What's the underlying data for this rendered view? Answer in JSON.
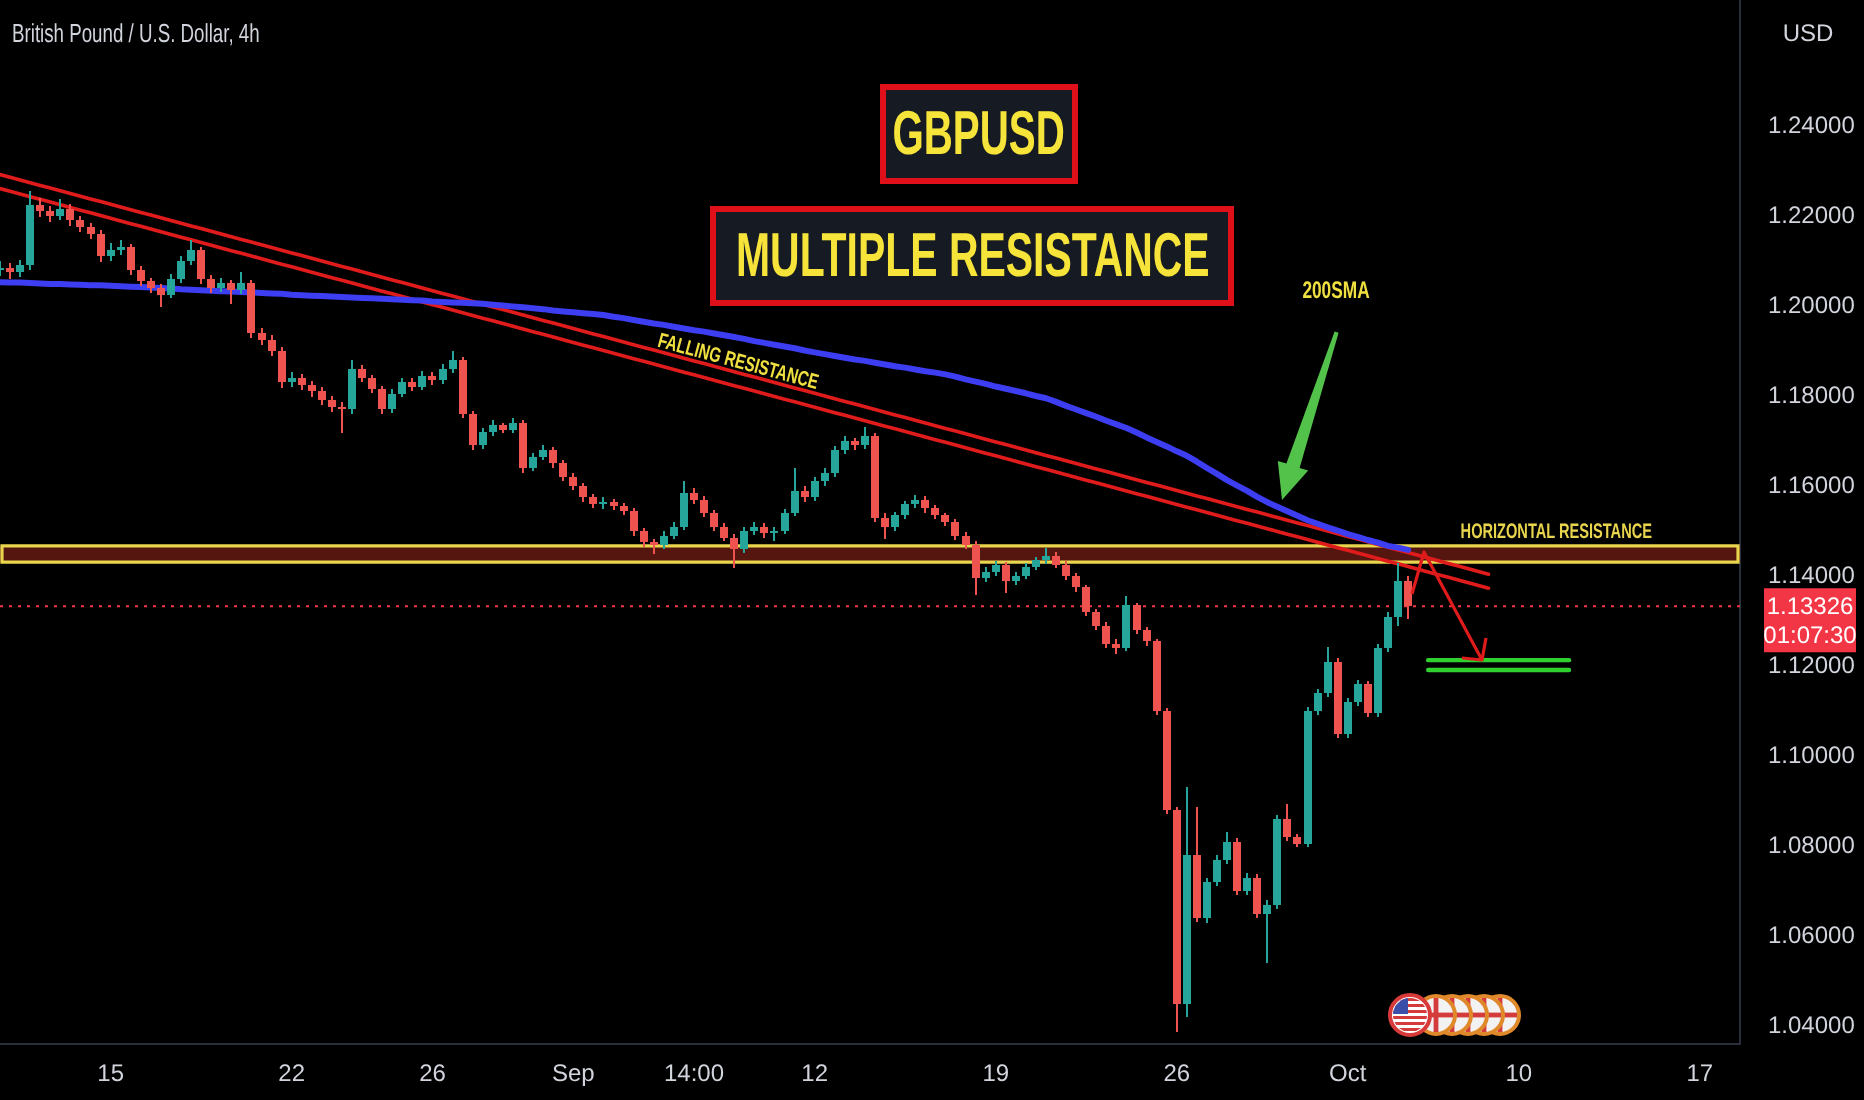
{
  "chart_data": {
    "type": "candlestick",
    "title": "GBPUSD",
    "subtitle": "MULTIPLE RESISTANCE",
    "ylabel": "USD",
    "annotations": [
      "British Pound / U.S. Dollar, 4h",
      "01:07:30",
      "200SMA"
    ],
    "categories": [
      null,
      null,
      null,
      null,
      null,
      null,
      null,
      null,
      null,
      null,
      null,
      "15",
      null,
      null,
      null,
      null,
      null,
      null,
      null,
      null,
      null,
      null,
      null,
      null,
      null,
      null,
      null,
      null,
      null,
      "22",
      null,
      null,
      null,
      null,
      null,
      null,
      null,
      null,
      null,
      null,
      null,
      null,
      null,
      "26",
      null,
      null,
      null,
      null,
      null,
      null,
      null,
      null,
      null,
      null,
      null,
      null,
      null,
      "Sep",
      null,
      null,
      null,
      null,
      null,
      null,
      null,
      null,
      null,
      null,
      null,
      "14:00",
      null,
      null,
      null,
      null,
      null,
      null,
      null,
      null,
      null,
      null,
      null,
      "12",
      null,
      null,
      null,
      null,
      null,
      null,
      null,
      null,
      null,
      null,
      null,
      null,
      null,
      null,
      null,
      null,
      null,
      "19",
      null,
      null,
      null,
      null,
      null,
      null,
      null,
      null,
      null,
      null,
      null,
      null,
      null,
      null,
      null,
      null,
      null,
      "26",
      null,
      null,
      null,
      null,
      null,
      null,
      null,
      null,
      null,
      null,
      null,
      null,
      null,
      null,
      null,
      null,
      "Oct",
      null,
      null,
      null,
      null,
      null,
      null,
      null,
      null,
      null,
      null,
      null,
      null,
      null,
      null,
      null,
      null,
      "10",
      null,
      null,
      null,
      null,
      null,
      null,
      null,
      null,
      null,
      null,
      null,
      null,
      null,
      null,
      null,
      null,
      null,
      "17",
      null,
      null,
      null,
      null
    ],
    "ohlc": [
      [
        1.208,
        1.2098,
        1.2068,
        1.2085
      ],
      [
        1.2085,
        1.2095,
        1.2062,
        1.2075
      ],
      [
        1.2075,
        1.2102,
        1.2066,
        1.209
      ],
      [
        1.209,
        1.2255,
        1.2082,
        1.2225
      ],
      [
        1.2225,
        1.224,
        1.2198,
        1.221
      ],
      [
        1.221,
        1.2222,
        1.2188,
        1.22
      ],
      [
        1.22,
        1.2236,
        1.2192,
        1.2215
      ],
      [
        1.2215,
        1.2226,
        1.218,
        1.219
      ],
      [
        1.219,
        1.2198,
        1.2165,
        1.2175
      ],
      [
        1.2175,
        1.2184,
        1.215,
        1.216
      ],
      [
        1.216,
        1.2168,
        1.21,
        1.211
      ],
      [
        1.211,
        1.2138,
        1.2102,
        1.2125
      ],
      [
        1.2125,
        1.2145,
        1.2115,
        1.213
      ],
      [
        1.213,
        1.2136,
        1.207,
        1.208
      ],
      [
        1.208,
        1.2088,
        1.2045,
        1.2055
      ],
      [
        1.2055,
        1.2062,
        1.203,
        1.204
      ],
      [
        1.204,
        1.2048,
        1.2,
        1.2025
      ],
      [
        1.2025,
        1.207,
        1.2018,
        1.206
      ],
      [
        1.206,
        1.211,
        1.2052,
        1.21
      ],
      [
        1.21,
        1.2145,
        1.2092,
        1.2125
      ],
      [
        1.2125,
        1.213,
        1.205,
        1.206
      ],
      [
        1.206,
        1.2068,
        1.203,
        1.204
      ],
      [
        1.204,
        1.2062,
        1.2032,
        1.205
      ],
      [
        1.205,
        1.2056,
        1.2005,
        1.2035
      ],
      [
        1.2035,
        1.2075,
        1.2028,
        1.205
      ],
      [
        1.205,
        1.2056,
        1.193,
        1.194
      ],
      [
        1.194,
        1.195,
        1.1915,
        1.1925
      ],
      [
        1.1925,
        1.1935,
        1.189,
        1.19
      ],
      [
        1.19,
        1.1908,
        1.182,
        1.183
      ],
      [
        1.183,
        1.1852,
        1.1822,
        1.184
      ],
      [
        1.184,
        1.1848,
        1.1815,
        1.1825
      ],
      [
        1.1825,
        1.1832,
        1.18,
        1.181
      ],
      [
        1.181,
        1.1818,
        1.1782,
        1.179
      ],
      [
        1.179,
        1.1798,
        1.1765,
        1.1775
      ],
      [
        1.1775,
        1.1785,
        1.172,
        1.177
      ],
      [
        1.177,
        1.188,
        1.1762,
        1.186
      ],
      [
        1.186,
        1.1868,
        1.1832,
        1.184
      ],
      [
        1.184,
        1.1846,
        1.1808,
        1.1815
      ],
      [
        1.1815,
        1.1822,
        1.1762,
        1.177
      ],
      [
        1.177,
        1.1815,
        1.1764,
        1.1805
      ],
      [
        1.1805,
        1.184,
        1.1798,
        1.183
      ],
      [
        1.183,
        1.1838,
        1.1812,
        1.182
      ],
      [
        1.182,
        1.1855,
        1.1814,
        1.1845
      ],
      [
        1.1845,
        1.1852,
        1.1826,
        1.1835
      ],
      [
        1.1835,
        1.187,
        1.1828,
        1.186
      ],
      [
        1.186,
        1.1898,
        1.1852,
        1.188
      ],
      [
        1.188,
        1.1886,
        1.1752,
        1.176
      ],
      [
        1.176,
        1.1766,
        1.1682,
        1.169
      ],
      [
        1.169,
        1.1728,
        1.1684,
        1.172
      ],
      [
        1.172,
        1.1745,
        1.1712,
        1.1735
      ],
      [
        1.1735,
        1.174,
        1.1718,
        1.1725
      ],
      [
        1.1725,
        1.175,
        1.172,
        1.174
      ],
      [
        1.174,
        1.1745,
        1.163,
        1.164
      ],
      [
        1.164,
        1.1672,
        1.1634,
        1.1665
      ],
      [
        1.1665,
        1.169,
        1.1658,
        1.168
      ],
      [
        1.168,
        1.1686,
        1.1642,
        1.165
      ],
      [
        1.165,
        1.1656,
        1.1612,
        1.162
      ],
      [
        1.162,
        1.1628,
        1.1592,
        1.16
      ],
      [
        1.16,
        1.1606,
        1.1566,
        1.1575
      ],
      [
        1.1575,
        1.1582,
        1.1552,
        1.156
      ],
      [
        1.156,
        1.1574,
        1.155,
        1.1565
      ],
      [
        1.1565,
        1.157,
        1.1548,
        1.1555
      ],
      [
        1.1555,
        1.1562,
        1.1536,
        1.1545
      ],
      [
        1.1545,
        1.155,
        1.149,
        1.15
      ],
      [
        1.15,
        1.1506,
        1.1466,
        1.1475
      ],
      [
        1.1475,
        1.1482,
        1.145,
        1.147
      ],
      [
        1.147,
        1.1498,
        1.1462,
        1.149
      ],
      [
        1.149,
        1.1518,
        1.1484,
        1.151
      ],
      [
        1.151,
        1.161,
        1.1504,
        1.1585
      ],
      [
        1.1585,
        1.1594,
        1.1562,
        1.157
      ],
      [
        1.157,
        1.1576,
        1.1532,
        1.154
      ],
      [
        1.154,
        1.1546,
        1.1502,
        1.151
      ],
      [
        1.151,
        1.1516,
        1.1478,
        1.1485
      ],
      [
        1.1485,
        1.1492,
        1.1418,
        1.146
      ],
      [
        1.146,
        1.1508,
        1.1452,
        1.15
      ],
      [
        1.15,
        1.1518,
        1.1492,
        1.151
      ],
      [
        1.151,
        1.1516,
        1.1486,
        1.1495
      ],
      [
        1.1495,
        1.1508,
        1.148,
        1.15
      ],
      [
        1.15,
        1.1548,
        1.1494,
        1.154
      ],
      [
        1.154,
        1.164,
        1.1534,
        1.159
      ],
      [
        1.159,
        1.1598,
        1.1566,
        1.1575
      ],
      [
        1.1575,
        1.1618,
        1.1568,
        1.161
      ],
      [
        1.161,
        1.1638,
        1.1602,
        1.163
      ],
      [
        1.163,
        1.1688,
        1.1622,
        1.168
      ],
      [
        1.168,
        1.171,
        1.1672,
        1.17
      ],
      [
        1.17,
        1.1706,
        1.1682,
        1.169
      ],
      [
        1.169,
        1.173,
        1.1684,
        1.171
      ],
      [
        1.171,
        1.1716,
        1.1522,
        1.153
      ],
      [
        1.153,
        1.1538,
        1.1484,
        1.151
      ],
      [
        1.151,
        1.1542,
        1.1502,
        1.1535
      ],
      [
        1.1535,
        1.1566,
        1.1528,
        1.156
      ],
      [
        1.156,
        1.158,
        1.1552,
        1.157
      ],
      [
        1.157,
        1.1576,
        1.1542,
        1.155
      ],
      [
        1.155,
        1.1556,
        1.1528,
        1.1535
      ],
      [
        1.1535,
        1.154,
        1.1512,
        1.152
      ],
      [
        1.152,
        1.1526,
        1.1482,
        1.149
      ],
      [
        1.149,
        1.1496,
        1.1462,
        1.147
      ],
      [
        1.147,
        1.1476,
        1.136,
        1.1395
      ],
      [
        1.1395,
        1.1418,
        1.1388,
        1.141
      ],
      [
        1.141,
        1.1432,
        1.1402,
        1.1425
      ],
      [
        1.1425,
        1.143,
        1.1364,
        1.139
      ],
      [
        1.139,
        1.1408,
        1.1382,
        1.14
      ],
      [
        1.14,
        1.1428,
        1.1394,
        1.142
      ],
      [
        1.142,
        1.1442,
        1.1414,
        1.1435
      ],
      [
        1.1435,
        1.1462,
        1.1428,
        1.1445
      ],
      [
        1.1445,
        1.1452,
        1.1418,
        1.1425
      ],
      [
        1.1425,
        1.1432,
        1.1392,
        1.14
      ],
      [
        1.14,
        1.1406,
        1.1366,
        1.1375
      ],
      [
        1.1375,
        1.138,
        1.1312,
        1.132
      ],
      [
        1.132,
        1.1326,
        1.1282,
        1.129
      ],
      [
        1.129,
        1.1296,
        1.1242,
        1.125
      ],
      [
        1.125,
        1.1258,
        1.1227,
        1.124
      ],
      [
        1.124,
        1.1355,
        1.1234,
        1.1335
      ],
      [
        1.1335,
        1.134,
        1.1272,
        1.128
      ],
      [
        1.128,
        1.1286,
        1.1246,
        1.1255
      ],
      [
        1.1255,
        1.126,
        1.1092,
        1.11
      ],
      [
        1.11,
        1.1106,
        1.0872,
        1.088
      ],
      [
        1.088,
        1.0886,
        1.0387,
        1.045
      ],
      [
        1.045,
        1.093,
        1.042,
        1.078
      ],
      [
        1.078,
        1.0885,
        1.0632,
        1.064
      ],
      [
        1.064,
        1.0728,
        1.063,
        1.072
      ],
      [
        1.072,
        1.0778,
        1.0712,
        1.077
      ],
      [
        1.077,
        1.083,
        1.0762,
        1.081
      ],
      [
        1.081,
        1.0816,
        1.0692,
        1.07
      ],
      [
        1.07,
        1.0738,
        1.0692,
        1.073
      ],
      [
        1.073,
        1.0736,
        1.0642,
        1.065
      ],
      [
        1.065,
        1.0678,
        1.054,
        1.067
      ],
      [
        1.067,
        1.0868,
        1.0662,
        1.086
      ],
      [
        1.086,
        1.0893,
        1.0812,
        1.082
      ],
      [
        1.082,
        1.0826,
        1.0798,
        1.0805
      ],
      [
        1.0805,
        1.1108,
        1.0798,
        1.11
      ],
      [
        1.11,
        1.1148,
        1.1092,
        1.114
      ],
      [
        1.114,
        1.124,
        1.1132,
        1.121
      ],
      [
        1.121,
        1.1216,
        1.1042,
        1.105
      ],
      [
        1.105,
        1.1128,
        1.1042,
        1.112
      ],
      [
        1.112,
        1.1168,
        1.1112,
        1.116
      ],
      [
        1.116,
        1.1166,
        1.1088,
        1.1095
      ],
      [
        1.1095,
        1.1248,
        1.1088,
        1.124
      ],
      [
        1.124,
        1.1318,
        1.1232,
        1.131
      ],
      [
        1.131,
        1.1427,
        1.129,
        1.139
      ],
      [
        1.139,
        1.14,
        1.1305,
        1.13326
      ],
      null,
      null,
      null,
      null,
      null,
      null,
      null,
      null,
      null,
      null,
      null,
      null,
      null,
      null,
      null,
      null,
      null,
      null,
      null,
      null,
      null,
      null,
      null,
      null,
      null,
      null,
      null,
      null,
      null,
      null,
      null,
      null,
      null
    ],
    "colors": [
      "#26a69a",
      "#ef5350",
      "#26a69a",
      "#26a69a",
      "#ef5350",
      "#ef5350",
      "#26a69a",
      "#ef5350",
      "#ef5350",
      "#ef5350",
      "#ef5350",
      "#26a69a",
      "#26a69a",
      "#ef5350",
      "#ef5350",
      "#ef5350",
      "#ef5350",
      "#26a69a",
      "#26a69a",
      "#26a69a",
      "#ef5350",
      "#ef5350",
      "#26a69a",
      "#ef5350",
      "#26a69a",
      "#ef5350",
      "#ef5350",
      "#ef5350",
      "#ef5350",
      "#26a69a",
      "#ef5350",
      "#ef5350",
      "#ef5350",
      "#ef5350",
      "#ef5350",
      "#26a69a",
      "#ef5350",
      "#ef5350",
      "#ef5350",
      "#26a69a",
      "#26a69a",
      "#ef5350",
      "#26a69a",
      "#ef5350",
      "#26a69a",
      "#26a69a",
      "#ef5350",
      "#ef5350",
      "#26a69a",
      "#26a69a",
      "#ef5350",
      "#26a69a",
      "#ef5350",
      "#26a69a",
      "#26a69a",
      "#ef5350",
      "#ef5350",
      "#ef5350",
      "#ef5350",
      "#ef5350",
      "#26a69a",
      "#ef5350",
      "#ef5350",
      "#ef5350",
      "#ef5350",
      "#ef5350",
      "#26a69a",
      "#26a69a",
      "#26a69a",
      "#ef5350",
      "#ef5350",
      "#ef5350",
      "#ef5350",
      "#ef5350",
      "#26a69a",
      "#26a69a",
      "#ef5350",
      "#26a69a",
      "#26a69a",
      "#26a69a",
      "#ef5350",
      "#26a69a",
      "#26a69a",
      "#26a69a",
      "#26a69a",
      "#ef5350",
      "#26a69a",
      "#ef5350",
      "#ef5350",
      "#26a69a",
      "#26a69a",
      "#26a69a",
      "#ef5350",
      "#ef5350",
      "#ef5350",
      "#ef5350",
      "#ef5350",
      "#ef5350",
      "#26a69a",
      "#26a69a",
      "#ef5350",
      "#26a69a",
      "#26a69a",
      "#26a69a",
      "#26a69a",
      "#ef5350",
      "#ef5350",
      "#ef5350",
      "#ef5350",
      "#ef5350",
      "#ef5350",
      "#ef5350",
      "#26a69a",
      "#ef5350",
      "#ef5350",
      "#ef5350",
      "#ef5350",
      "#ef5350",
      "#26a69a",
      "#ef5350",
      "#26a69a",
      "#26a69a",
      "#26a69a",
      "#ef5350",
      "#26a69a",
      "#ef5350",
      "#26a69a",
      "#26a69a",
      "#ef5350",
      "#ef5350",
      "#26a69a",
      "#26a69a",
      "#26a69a",
      "#ef5350",
      "#26a69a",
      "#26a69a",
      "#ef5350",
      "#26a69a",
      "#26a69a",
      "#26a69a",
      "#ef5350",
      null,
      null,
      null,
      null,
      null,
      null,
      null,
      null,
      null,
      null,
      null,
      null,
      null,
      null,
      null,
      null,
      null,
      null,
      null,
      null,
      null,
      null,
      null,
      null,
      null,
      null,
      null,
      null,
      null,
      null,
      null,
      null,
      null
    ],
    "series": [
      {
        "type": "line",
        "color": "#3d3df2",
        "values": [
          1.2053,
          1.2052,
          1.2052,
          1.2051,
          1.205,
          1.2049,
          1.2049,
          1.2048,
          1.2047,
          1.2046,
          1.2046,
          1.2045,
          1.2044,
          1.2043,
          1.2042,
          1.2041,
          1.204,
          1.2039,
          1.2037,
          1.2036,
          1.2035,
          1.2034,
          1.2033,
          1.2032,
          1.2031,
          1.203,
          1.2029,
          1.2028,
          1.2027,
          1.2025,
          1.2024,
          1.2023,
          1.2022,
          1.2021,
          1.202,
          1.2019,
          1.2018,
          1.2017,
          1.2016,
          1.2015,
          1.2014,
          1.2013,
          1.2012,
          1.201,
          1.2009,
          1.2008,
          1.2007,
          1.2006,
          1.2005,
          1.2003,
          1.2001,
          1.1999,
          1.1997,
          1.1995,
          1.1993,
          1.199,
          1.1988,
          1.1986,
          1.1984,
          1.1982,
          1.198,
          1.1976,
          1.1973,
          1.1969,
          1.1965,
          1.1961,
          1.1958,
          1.1954,
          1.195,
          1.1946,
          1.1943,
          1.1939,
          1.1935,
          1.1931,
          1.1927,
          1.1922,
          1.1918,
          1.1914,
          1.191,
          1.1906,
          1.1901,
          1.1897,
          1.1893,
          1.1889,
          1.1885,
          1.1881,
          1.1878,
          1.1874,
          1.187,
          1.1866,
          1.1863,
          1.1859,
          1.1855,
          1.1852,
          1.1848,
          1.1843,
          1.1837,
          1.1832,
          1.1827,
          1.1821,
          1.1816,
          1.1811,
          1.1806,
          1.18,
          1.1795,
          1.1787,
          1.1778,
          1.177,
          1.1762,
          1.1754,
          1.1745,
          1.1737,
          1.1729,
          1.1719,
          1.1708,
          1.1698,
          1.1688,
          1.1677,
          1.1667,
          1.1654,
          1.164,
          1.1627,
          1.1613,
          1.1601,
          1.1589,
          1.1576,
          1.1564,
          1.1554,
          1.1544,
          1.1534,
          1.1524,
          1.1516,
          1.1508,
          1.1501,
          1.1493,
          1.1487,
          1.148,
          1.1474,
          1.1467,
          1.1463,
          1.1458,
          null,
          null,
          null,
          null,
          null,
          null,
          null,
          null,
          null,
          null,
          null,
          null,
          null,
          null,
          null,
          null,
          null,
          null,
          null,
          null,
          null,
          null,
          null,
          null,
          null,
          null,
          null,
          null,
          null,
          null,
          null,
          null,
          null
        ]
      },
      {
        "type": "line",
        "name": "FALLING RESISTANCE",
        "color": "#e01b1b",
        "values": [
          1.2292,
          1.2286,
          1.228,
          1.2274,
          1.2268,
          1.2262,
          1.2256,
          1.225,
          1.2244,
          1.2238,
          1.2232,
          1.2226,
          1.222,
          1.2214,
          1.2208,
          1.2202,
          1.2196,
          1.219,
          1.2184,
          1.2178,
          1.2172,
          1.2166,
          1.216,
          1.2154,
          1.2148,
          1.2142,
          1.2136,
          1.213,
          1.2124,
          1.2118,
          1.2112,
          1.2106,
          1.21,
          1.2094,
          1.2088,
          1.2082,
          1.2076,
          1.207,
          1.2064,
          1.2058,
          1.2052,
          1.2046,
          1.204,
          1.2034,
          1.2028,
          1.2022,
          1.2016,
          1.201,
          1.2004,
          1.1998,
          1.1992,
          1.1986,
          1.198,
          1.1974,
          1.1968,
          1.1962,
          1.1956,
          1.195,
          1.1944,
          1.1938,
          1.1932,
          1.1926,
          1.192,
          1.1914,
          1.1908,
          1.1902,
          1.1896,
          1.189,
          1.1884,
          1.1878,
          1.1872,
          1.1866,
          1.186,
          1.1854,
          1.1848,
          1.1842,
          1.1836,
          1.183,
          1.1824,
          1.1818,
          1.1812,
          1.1806,
          1.18,
          1.1794,
          1.1788,
          1.1782,
          1.1776,
          1.177,
          1.1764,
          1.1758,
          1.1752,
          1.1746,
          1.174,
          1.1734,
          1.1728,
          1.1722,
          1.1716,
          1.171,
          1.1704,
          1.1698,
          1.1692,
          1.1686,
          1.168,
          1.1674,
          1.1668,
          1.1662,
          1.1656,
          1.165,
          1.1644,
          1.1638,
          1.1632,
          1.1626,
          1.162,
          1.1614,
          1.1608,
          1.1602,
          1.1596,
          1.159,
          1.1584,
          1.1578,
          1.1572,
          1.1566,
          1.156,
          1.1554,
          1.1548,
          1.1542,
          1.1536,
          1.153,
          1.1524,
          1.1518,
          1.1512,
          1.1506,
          1.15,
          1.1494,
          1.1488,
          1.1482,
          1.1476,
          1.147,
          1.1464,
          1.1458,
          1.1452,
          1.1446,
          1.144,
          1.1434,
          1.1428,
          1.1422,
          1.1416,
          1.141,
          1.1404,
          null,
          null,
          null,
          null,
          null,
          null,
          null,
          null,
          null,
          null,
          null,
          null,
          null,
          null,
          null,
          null,
          null,
          null,
          null,
          null,
          null,
          null,
          null,
          null,
          null
        ]
      },
      {
        "type": "line",
        "color": "#e01b1b",
        "values": [
          1.2261,
          1.2255,
          1.2249,
          1.2243,
          1.2237,
          1.2231,
          1.2225,
          1.2219,
          1.2213,
          1.2207,
          1.2201,
          1.2195,
          1.2189,
          1.2183,
          1.2177,
          1.2171,
          1.2165,
          1.2159,
          1.2153,
          1.2147,
          1.2141,
          1.2135,
          1.2129,
          1.2123,
          1.2117,
          1.2111,
          1.2105,
          1.2099,
          1.2093,
          1.2087,
          1.2081,
          1.2075,
          1.2069,
          1.2063,
          1.2057,
          1.2051,
          1.2045,
          1.2039,
          1.2033,
          1.2027,
          1.2021,
          1.2015,
          1.2009,
          1.2003,
          1.1997,
          1.1991,
          1.1985,
          1.1979,
          1.1973,
          1.1967,
          1.1961,
          1.1955,
          1.1949,
          1.1943,
          1.1937,
          1.1931,
          1.1925,
          1.1919,
          1.1913,
          1.1907,
          1.1901,
          1.1895,
          1.1889,
          1.1883,
          1.1877,
          1.1871,
          1.1865,
          1.1859,
          1.1853,
          1.1847,
          1.1841,
          1.1835,
          1.1829,
          1.1823,
          1.1817,
          1.1811,
          1.1805,
          1.1799,
          1.1793,
          1.1787,
          1.1781,
          1.1775,
          1.1769,
          1.1763,
          1.1757,
          1.1751,
          1.1745,
          1.1739,
          1.1733,
          1.1727,
          1.1721,
          1.1715,
          1.1709,
          1.1703,
          1.1697,
          1.1691,
          1.1685,
          1.1679,
          1.1673,
          1.1667,
          1.1661,
          1.1655,
          1.1649,
          1.1643,
          1.1637,
          1.1631,
          1.1625,
          1.1619,
          1.1613,
          1.1607,
          1.1601,
          1.1595,
          1.1589,
          1.1583,
          1.1577,
          1.1571,
          1.1565,
          1.1559,
          1.1553,
          1.1547,
          1.1541,
          1.1535,
          1.1529,
          1.1523,
          1.1517,
          1.1511,
          1.1505,
          1.1499,
          1.1493,
          1.1487,
          1.1481,
          1.1475,
          1.1469,
          1.1463,
          1.1457,
          1.1451,
          1.1445,
          1.1439,
          1.1433,
          1.1427,
          1.1421,
          1.1415,
          1.1409,
          1.1403,
          1.1397,
          1.1391,
          1.1385,
          1.1379,
          1.1373,
          null,
          null,
          null,
          null,
          null,
          null,
          null,
          null,
          null,
          null,
          null,
          null,
          null,
          null,
          null,
          null,
          null,
          null,
          null,
          null,
          null,
          null,
          null,
          null,
          null
        ]
      },
      {
        "type": "line",
        "color": "#2fd12f",
        "values": [
          null,
          null,
          null,
          null,
          null,
          null,
          null,
          null,
          null,
          null,
          null,
          null,
          null,
          null,
          null,
          null,
          null,
          null,
          null,
          null,
          null,
          null,
          null,
          null,
          null,
          null,
          null,
          null,
          null,
          null,
          null,
          null,
          null,
          null,
          null,
          null,
          null,
          null,
          null,
          null,
          null,
          null,
          null,
          null,
          null,
          null,
          null,
          null,
          null,
          null,
          null,
          null,
          null,
          null,
          null,
          null,
          null,
          null,
          null,
          null,
          null,
          null,
          null,
          null,
          null,
          null,
          null,
          null,
          null,
          null,
          null,
          null,
          null,
          null,
          null,
          null,
          null,
          null,
          null,
          null,
          null,
          null,
          null,
          null,
          null,
          null,
          null,
          null,
          null,
          null,
          null,
          null,
          null,
          null,
          null,
          null,
          null,
          null,
          null,
          null,
          null,
          null,
          null,
          null,
          null,
          null,
          null,
          null,
          null,
          null,
          null,
          null,
          null,
          null,
          null,
          null,
          null,
          null,
          null,
          null,
          null,
          null,
          null,
          null,
          null,
          null,
          null,
          null,
          null,
          null,
          null,
          null,
          null,
          null,
          null,
          null,
          null,
          null,
          null,
          null,
          null,
          null,
          1.1213,
          1.1213,
          1.1213,
          1.1213,
          1.1213,
          1.1213,
          1.1213,
          1.1213,
          1.1213,
          1.1213,
          1.1213,
          1.1213,
          1.1213,
          1.1213,
          1.1213,
          null,
          null,
          null,
          null,
          null,
          null,
          null,
          null,
          null,
          null,
          null,
          null,
          null,
          null,
          null,
          null,
          null
        ]
      },
      {
        "type": "line",
        "color": "#2fd12f",
        "values": [
          null,
          null,
          null,
          null,
          null,
          null,
          null,
          null,
          null,
          null,
          null,
          null,
          null,
          null,
          null,
          null,
          null,
          null,
          null,
          null,
          null,
          null,
          null,
          null,
          null,
          null,
          null,
          null,
          null,
          null,
          null,
          null,
          null,
          null,
          null,
          null,
          null,
          null,
          null,
          null,
          null,
          null,
          null,
          null,
          null,
          null,
          null,
          null,
          null,
          null,
          null,
          null,
          null,
          null,
          null,
          null,
          null,
          null,
          null,
          null,
          null,
          null,
          null,
          null,
          null,
          null,
          null,
          null,
          null,
          null,
          null,
          null,
          null,
          null,
          null,
          null,
          null,
          null,
          null,
          null,
          null,
          null,
          null,
          null,
          null,
          null,
          null,
          null,
          null,
          null,
          null,
          null,
          null,
          null,
          null,
          null,
          null,
          null,
          null,
          null,
          null,
          null,
          null,
          null,
          null,
          null,
          null,
          null,
          null,
          null,
          null,
          null,
          null,
          null,
          null,
          null,
          null,
          null,
          null,
          null,
          null,
          null,
          null,
          null,
          null,
          null,
          null,
          null,
          null,
          null,
          null,
          null,
          null,
          null,
          null,
          null,
          null,
          null,
          null,
          null,
          null,
          null,
          1.1191,
          1.1191,
          1.1191,
          1.1191,
          1.1191,
          1.1191,
          1.1191,
          1.1191,
          1.1191,
          1.1191,
          1.1191,
          1.1191,
          1.1191,
          1.1191,
          1.1191,
          null,
          null,
          null,
          null,
          null,
          null,
          null,
          null,
          null,
          null,
          null,
          null,
          null,
          null,
          null,
          null,
          null
        ]
      }
    ],
    "bands": [
      {
        "axis": "y",
        "from": 1.1431,
        "to": 1.1467,
        "label": "HORIZONTAL RESISTANCE",
        "color": "#55160f"
      }
    ],
    "ref_lines": [
      {
        "axis": "y",
        "value": 1.13326,
        "label": "1.13326",
        "color": "#f23645",
        "line_style": "dotted"
      }
    ],
    "ylim": [
      1.036,
      1.268
    ],
    "yticks": [
      {
        "value": 1.04,
        "label": "1.04000"
      },
      {
        "value": 1.06,
        "label": "1.06000"
      },
      {
        "value": 1.08,
        "label": "1.08000"
      },
      {
        "value": 1.1,
        "label": "1.10000"
      },
      {
        "value": 1.12,
        "label": "1.12000"
      },
      {
        "value": 1.14,
        "label": "1.14000"
      },
      {
        "value": 1.16,
        "label": "1.16000"
      },
      {
        "value": 1.18,
        "label": "1.18000"
      },
      {
        "value": 1.2,
        "label": "1.20000"
      },
      {
        "value": 1.22,
        "label": "1.22000"
      },
      {
        "value": 1.24,
        "label": "1.24000"
      }
    ],
    "grid": false,
    "legend": false
  }
}
